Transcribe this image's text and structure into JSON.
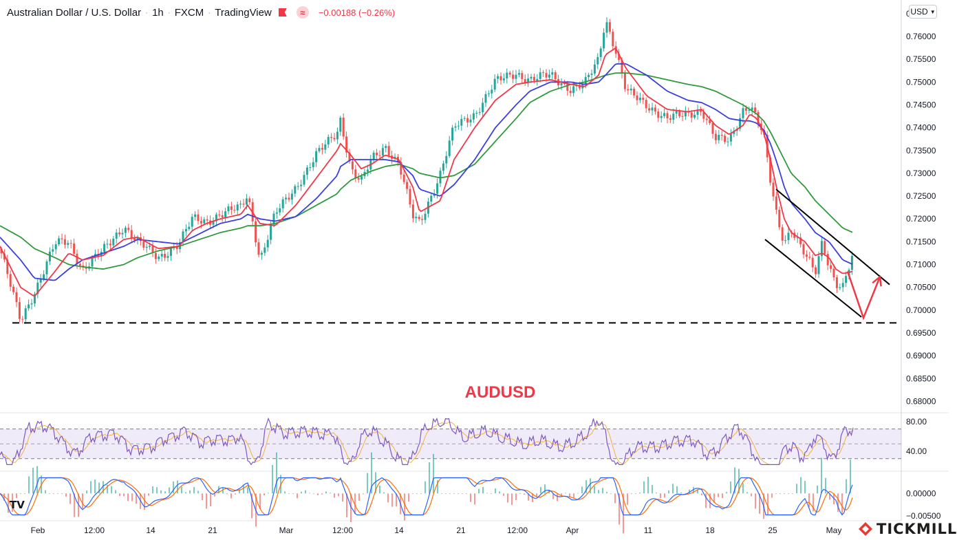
{
  "header": {
    "symbol": "Australian Dollar / U.S. Dollar",
    "interval": "1h",
    "exchange": "FXCM",
    "source": "TradingView",
    "change": "−0.00188 (−0.26%)"
  },
  "currency_button": {
    "label": "USD"
  },
  "logo": {
    "text": "TICKMILL"
  },
  "tv_logo": {
    "text": "TV"
  },
  "colors": {
    "red_ma": "#f23645",
    "blue_ma": "#3b3fe0",
    "green_ma": "#2e9a3a",
    "candle_up": "#26a69a",
    "candle_down": "#ef5350",
    "rsi_line": "#7e57c2",
    "rsi_signal": "#f2b33d",
    "macd": "#2962ff",
    "signal": "#ff6d00",
    "annotation": "#f23645"
  },
  "chart_data": {
    "type": "line",
    "title": "AUDUSD",
    "x_labels": [
      "Feb",
      "12:00",
      "14",
      "21",
      "Mar",
      "12:00",
      "14",
      "21",
      "12:00",
      "Apr",
      "11",
      "18",
      "25",
      "May"
    ],
    "y_ticks": [
      "0.68000",
      "0.68500",
      "0.69000",
      "0.69500",
      "0.70000",
      "0.70500",
      "0.71000",
      "0.71500",
      "0.72000",
      "0.72500",
      "0.73000",
      "0.73500",
      "0.74000",
      "0.74500",
      "0.75000",
      "0.75500",
      "0.76000",
      "0.76500"
    ],
    "ylim": [
      0.6775,
      0.768
    ],
    "price_x": [
      0,
      30,
      50,
      80,
      100,
      120,
      150,
      180,
      200,
      230,
      260,
      280,
      300,
      320,
      350,
      360,
      378,
      400,
      430,
      460,
      490,
      495,
      510,
      525,
      540,
      560,
      580,
      600,
      610,
      640,
      660,
      690,
      720,
      750,
      770,
      800,
      830,
      850,
      870,
      880,
      895,
      910,
      940,
      970,
      1000,
      1020,
      1040,
      1060,
      1080,
      1090,
      1100,
      1110,
      1120,
      1130,
      1140,
      1150,
      1170,
      1185,
      1195,
      1205,
      1215,
      1225,
      1240
    ],
    "close": [
      0.7135,
      0.6975,
      0.704,
      0.7145,
      0.715,
      0.709,
      0.713,
      0.7185,
      0.715,
      0.7115,
      0.7145,
      0.72,
      0.7195,
      0.721,
      0.7225,
      0.7255,
      0.711,
      0.721,
      0.727,
      0.734,
      0.739,
      0.742,
      0.731,
      0.728,
      0.733,
      0.736,
      0.732,
      0.7205,
      0.719,
      0.73,
      0.74,
      0.743,
      0.75,
      0.752,
      0.7505,
      0.7515,
      0.7485,
      0.7495,
      0.755,
      0.764,
      0.757,
      0.748,
      0.745,
      0.742,
      0.743,
      0.744,
      0.7375,
      0.737,
      0.744,
      0.745,
      0.742,
      0.738,
      0.728,
      0.72,
      0.715,
      0.718,
      0.712,
      0.708,
      0.715,
      0.71,
      0.706,
      0.705,
      0.712
    ],
    "ma_red": [
      0.714,
      0.705,
      0.703,
      0.7085,
      0.7125,
      0.711,
      0.712,
      0.7155,
      0.716,
      0.7135,
      0.714,
      0.7175,
      0.719,
      0.72,
      0.721,
      0.723,
      0.719,
      0.7185,
      0.723,
      0.729,
      0.735,
      0.7365,
      0.734,
      0.731,
      0.732,
      0.734,
      0.733,
      0.727,
      0.7215,
      0.724,
      0.733,
      0.74,
      0.746,
      0.7495,
      0.75,
      0.7505,
      0.7495,
      0.749,
      0.7515,
      0.756,
      0.7575,
      0.753,
      0.747,
      0.744,
      0.7435,
      0.744,
      0.7405,
      0.7385,
      0.7405,
      0.743,
      0.742,
      0.739,
      0.733,
      0.726,
      0.72,
      0.717,
      0.715,
      0.712,
      0.7125,
      0.7115,
      0.709,
      0.708,
      0.7085
    ],
    "ma_blue": [
      0.716,
      0.711,
      0.707,
      0.7065,
      0.709,
      0.711,
      0.7125,
      0.714,
      0.7155,
      0.715,
      0.7145,
      0.716,
      0.7175,
      0.719,
      0.72,
      0.721,
      0.72,
      0.7195,
      0.7205,
      0.7245,
      0.7295,
      0.7315,
      0.733,
      0.733,
      0.733,
      0.733,
      0.7325,
      0.7295,
      0.7265,
      0.725,
      0.7275,
      0.733,
      0.74,
      0.745,
      0.748,
      0.75,
      0.75,
      0.7495,
      0.75,
      0.7515,
      0.754,
      0.754,
      0.7515,
      0.748,
      0.746,
      0.7455,
      0.744,
      0.742,
      0.7415,
      0.7415,
      0.741,
      0.7395,
      0.7365,
      0.732,
      0.727,
      0.7235,
      0.72,
      0.717,
      0.716,
      0.715,
      0.713,
      0.711,
      0.71
    ],
    "ma_green": [
      0.7185,
      0.716,
      0.7135,
      0.7115,
      0.71,
      0.7095,
      0.709,
      0.71,
      0.7115,
      0.713,
      0.714,
      0.715,
      0.716,
      0.717,
      0.718,
      0.7185,
      0.7185,
      0.719,
      0.7205,
      0.723,
      0.7255,
      0.7265,
      0.7285,
      0.7295,
      0.7305,
      0.7315,
      0.732,
      0.731,
      0.73,
      0.729,
      0.7295,
      0.732,
      0.737,
      0.742,
      0.7455,
      0.748,
      0.7495,
      0.75,
      0.751,
      0.7515,
      0.752,
      0.752,
      0.7515,
      0.7505,
      0.7495,
      0.749,
      0.748,
      0.7465,
      0.745,
      0.744,
      0.743,
      0.7415,
      0.739,
      0.736,
      0.733,
      0.73,
      0.727,
      0.724,
      0.7225,
      0.721,
      0.7195,
      0.718,
      0.717
    ],
    "support_level": 0.6972,
    "channel": {
      "upper": [
        [
          1128,
          0.7265
        ],
        [
          1293,
          0.7056
        ]
      ],
      "lower": [
        [
          1112,
          0.7155
        ],
        [
          1252,
          0.6985
        ]
      ]
    },
    "annotation_arrow": [
      [
        1232,
        0.7085
      ],
      [
        1255,
        0.6983
      ],
      [
        1279,
        0.7073
      ]
    ],
    "rsi": {
      "ticks": [
        "80.00",
        "40.00"
      ],
      "band": [
        70,
        30
      ],
      "ylim": [
        15,
        90
      ]
    },
    "macd": {
      "ticks": [
        "0.00000",
        "−0.00500"
      ],
      "ylim": [
        -0.0058,
        0.0045
      ]
    }
  }
}
